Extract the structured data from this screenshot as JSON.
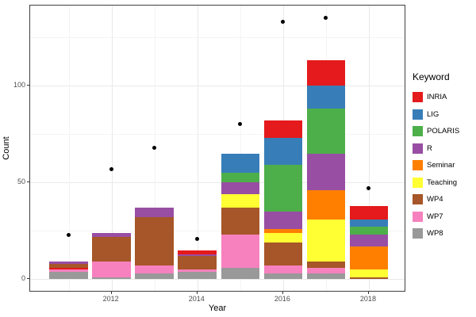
{
  "chart_data": {
    "type": "bar",
    "subtype": "stacked-bars-with-points",
    "title": "",
    "xlabel": "Year",
    "ylabel": "Count",
    "legend_title": "Keyword",
    "legend_position": "right",
    "grid": true,
    "categories": [
      2011,
      2012,
      2013,
      2014,
      2015,
      2016,
      2017,
      2018
    ],
    "xticks": [
      2012,
      2014,
      2016,
      2018
    ],
    "yticks": [
      0,
      50,
      100
    ],
    "ylim": [
      -7,
      141.5
    ],
    "bar_totals": [
      9,
      24,
      37,
      15,
      65,
      82,
      113,
      38
    ],
    "series": [
      {
        "name": "INRIA",
        "color": "#E41A1C",
        "values": [
          1,
          0,
          0,
          2,
          0,
          9,
          13,
          7
        ]
      },
      {
        "name": "LIG",
        "color": "#377EB8",
        "values": [
          0,
          0,
          0,
          0,
          10,
          14,
          12,
          4
        ]
      },
      {
        "name": "POLARIS",
        "color": "#4DAF4A",
        "values": [
          0,
          0,
          0,
          0,
          5,
          24,
          23,
          4
        ]
      },
      {
        "name": "R",
        "color": "#984EA3",
        "values": [
          1,
          2,
          5,
          1,
          6,
          9,
          19,
          6
        ]
      },
      {
        "name": "Seminar",
        "color": "#FF7F00",
        "values": [
          0,
          0,
          0,
          0,
          0,
          2,
          15,
          12
        ]
      },
      {
        "name": "Teaching",
        "color": "#FFFF33",
        "values": [
          0,
          0,
          0,
          0,
          7,
          5,
          22,
          4
        ]
      },
      {
        "name": "WP4",
        "color": "#A65628",
        "values": [
          2,
          13,
          25,
          7,
          14,
          12,
          3,
          1
        ]
      },
      {
        "name": "WP7",
        "color": "#F781BF",
        "values": [
          1,
          8,
          4,
          1,
          17,
          4,
          3,
          0
        ]
      },
      {
        "name": "WP8",
        "color": "#999999",
        "values": [
          4,
          1,
          3,
          4,
          6,
          3,
          3,
          0
        ]
      }
    ],
    "points_series": {
      "name": "overlay-points",
      "color": "#000000",
      "values": [
        23,
        57,
        68,
        21,
        80,
        133,
        135,
        47
      ]
    },
    "stack_order_bottom_to_top": [
      "WP8",
      "WP7",
      "WP4",
      "Teaching",
      "Seminar",
      "R",
      "POLARIS",
      "LIG",
      "INRIA"
    ],
    "stack_exceptions": {
      "2011": [
        "WP8",
        "WP7",
        "INRIA",
        "WP4",
        "R"
      ]
    }
  }
}
